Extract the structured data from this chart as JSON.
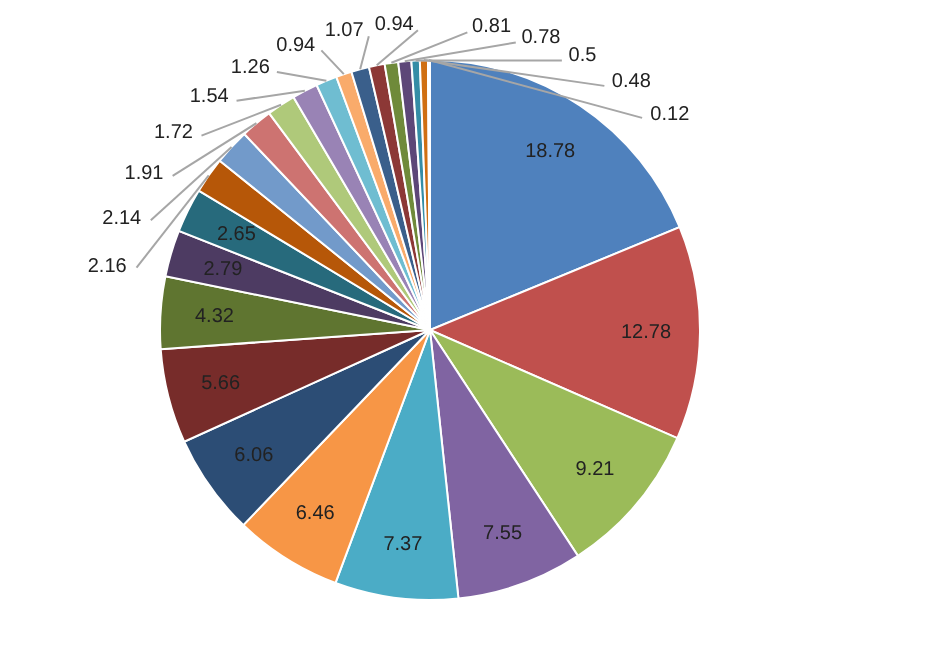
{
  "chart_data": {
    "type": "pie",
    "categories": [
      null,
      null,
      null,
      null,
      null,
      null,
      null,
      null,
      null,
      null,
      null,
      null,
      null,
      null,
      null,
      null,
      null,
      null,
      null,
      null,
      null,
      null,
      null,
      null,
      null
    ],
    "values": [
      18.78,
      12.78,
      9.21,
      7.55,
      7.37,
      6.46,
      6.06,
      5.66,
      4.32,
      2.79,
      2.65,
      2.16,
      2.14,
      1.91,
      1.72,
      1.54,
      1.26,
      0.94,
      1.07,
      0.94,
      0.81,
      0.78,
      0.5,
      0.48,
      0.12
    ],
    "colors": [
      "#4f81bd",
      "#c0504d",
      "#9bbb59",
      "#8064a2",
      "#4bacc6",
      "#f79646",
      "#2c4d75",
      "#772c2a",
      "#5f7530",
      "#4d3b62",
      "#276a7c",
      "#b65708",
      "#729aca",
      "#cd7371",
      "#afc97a",
      "#9983b5",
      "#6fbdd1",
      "#f9ab6b",
      "#3a5f8b",
      "#8c3836",
      "#6f8a3a",
      "#5d4778",
      "#358da6",
      "#d06f12",
      "#a7c3e3"
    ],
    "data_labels": true
  }
}
